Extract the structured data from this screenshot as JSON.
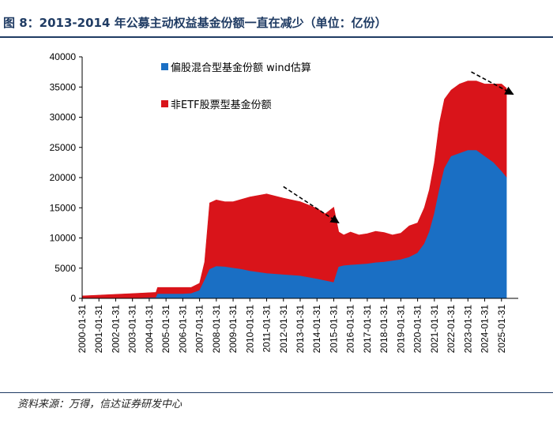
{
  "figure": {
    "title": "图 8：2013-2014 年公募主动权益基金份额一直在减少（单位：亿份）",
    "source": "资料来源：万得，信达证券研发中心"
  },
  "chart_data": {
    "type": "area",
    "title": "图 8：2013-2014 年公募主动权益基金份额一直在减少（单位：亿份）",
    "xlabel": "",
    "ylabel": "",
    "ylim": [
      0,
      40000
    ],
    "xlim": [
      2000.0,
      2026.0
    ],
    "yticks": [
      0,
      5000,
      10000,
      15000,
      20000,
      25000,
      30000,
      35000,
      40000
    ],
    "x_tick_labels": [
      "2000-01-31",
      "2001-01-31",
      "2002-01-31",
      "2003-01-31",
      "2004-01-31",
      "2005-01-31",
      "2006-01-31",
      "2007-01-31",
      "2008-01-31",
      "2009-01-31",
      "2010-01-31",
      "2011-01-31",
      "2012-01-31",
      "2013-01-31",
      "2014-01-31",
      "2015-01-31",
      "2016-01-31",
      "2017-01-31",
      "2018-01-31",
      "2019-01-31",
      "2020-01-31",
      "2021-01-31",
      "2022-01-31",
      "2023-01-31",
      "2024-01-31",
      "2025-01-31"
    ],
    "stacked": true,
    "series": [
      {
        "name": "偏股混合型基金份额 wind估算",
        "color": "#1a6fc4",
        "x": [
          2000.0,
          2003.0,
          2004.4,
          2004.5,
          2006.0,
          2006.5,
          2007.0,
          2007.3,
          2007.6,
          2008.0,
          2008.5,
          2009.0,
          2009.5,
          2010.0,
          2011.0,
          2012.0,
          2013.0,
          2014.0,
          2014.5,
          2015.0,
          2015.3,
          2015.6,
          2016.0,
          2016.5,
          2017.0,
          2017.5,
          2018.0,
          2018.5,
          2019.0,
          2019.5,
          2020.0,
          2020.4,
          2020.7,
          2021.0,
          2021.3,
          2021.6,
          2022.0,
          2022.5,
          2023.0,
          2023.5,
          2024.0,
          2024.5,
          2025.0,
          2025.3
        ],
        "y": [
          0,
          0,
          100,
          700,
          700,
          800,
          1300,
          3000,
          4800,
          5300,
          5200,
          5000,
          4800,
          4500,
          4100,
          3900,
          3700,
          3200,
          2900,
          2600,
          5200,
          5400,
          5500,
          5600,
          5700,
          5900,
          6000,
          6200,
          6400,
          6800,
          7500,
          9000,
          11000,
          14000,
          18000,
          21500,
          23500,
          24000,
          24500,
          24500,
          23500,
          22500,
          21000,
          20000
        ]
      },
      {
        "name": "非ETF股票型基金份额",
        "color": "#d9141a",
        "x": [
          2000.0,
          2003.0,
          2004.4,
          2004.5,
          2006.0,
          2006.5,
          2007.0,
          2007.3,
          2007.6,
          2008.0,
          2008.5,
          2009.0,
          2009.5,
          2010.0,
          2011.0,
          2012.0,
          2013.0,
          2014.0,
          2014.5,
          2015.0,
          2015.3,
          2015.6,
          2016.0,
          2016.5,
          2017.0,
          2017.5,
          2018.0,
          2018.5,
          2019.0,
          2019.5,
          2020.0,
          2020.4,
          2020.7,
          2021.0,
          2021.3,
          2021.6,
          2022.0,
          2022.5,
          2023.0,
          2023.5,
          2024.0,
          2024.5,
          2025.0,
          2025.3
        ],
        "y": [
          400,
          800,
          900,
          1100,
          1100,
          1000,
          1200,
          3000,
          11000,
          11000,
          10800,
          11000,
          11600,
          12300,
          13200,
          12700,
          12300,
          11700,
          11100,
          12500,
          5800,
          5100,
          5500,
          4900,
          5000,
          5200,
          4900,
          4300,
          4400,
          5200,
          5000,
          6000,
          7000,
          8500,
          11000,
          11500,
          11000,
          11500,
          11500,
          11500,
          12000,
          13000,
          14500,
          14800
        ]
      }
    ],
    "annotations": [
      {
        "type": "arrow",
        "style": "dashed",
        "from": [
          2012.0,
          18500
        ],
        "to": [
          2015.3,
          12500
        ]
      },
      {
        "type": "arrow",
        "style": "dashed",
        "from": [
          2023.2,
          37500
        ],
        "to": [
          2025.7,
          33800
        ]
      }
    ],
    "legend": [
      "偏股混合型基金份额 wind估算",
      "非ETF股票型基金份额"
    ]
  }
}
